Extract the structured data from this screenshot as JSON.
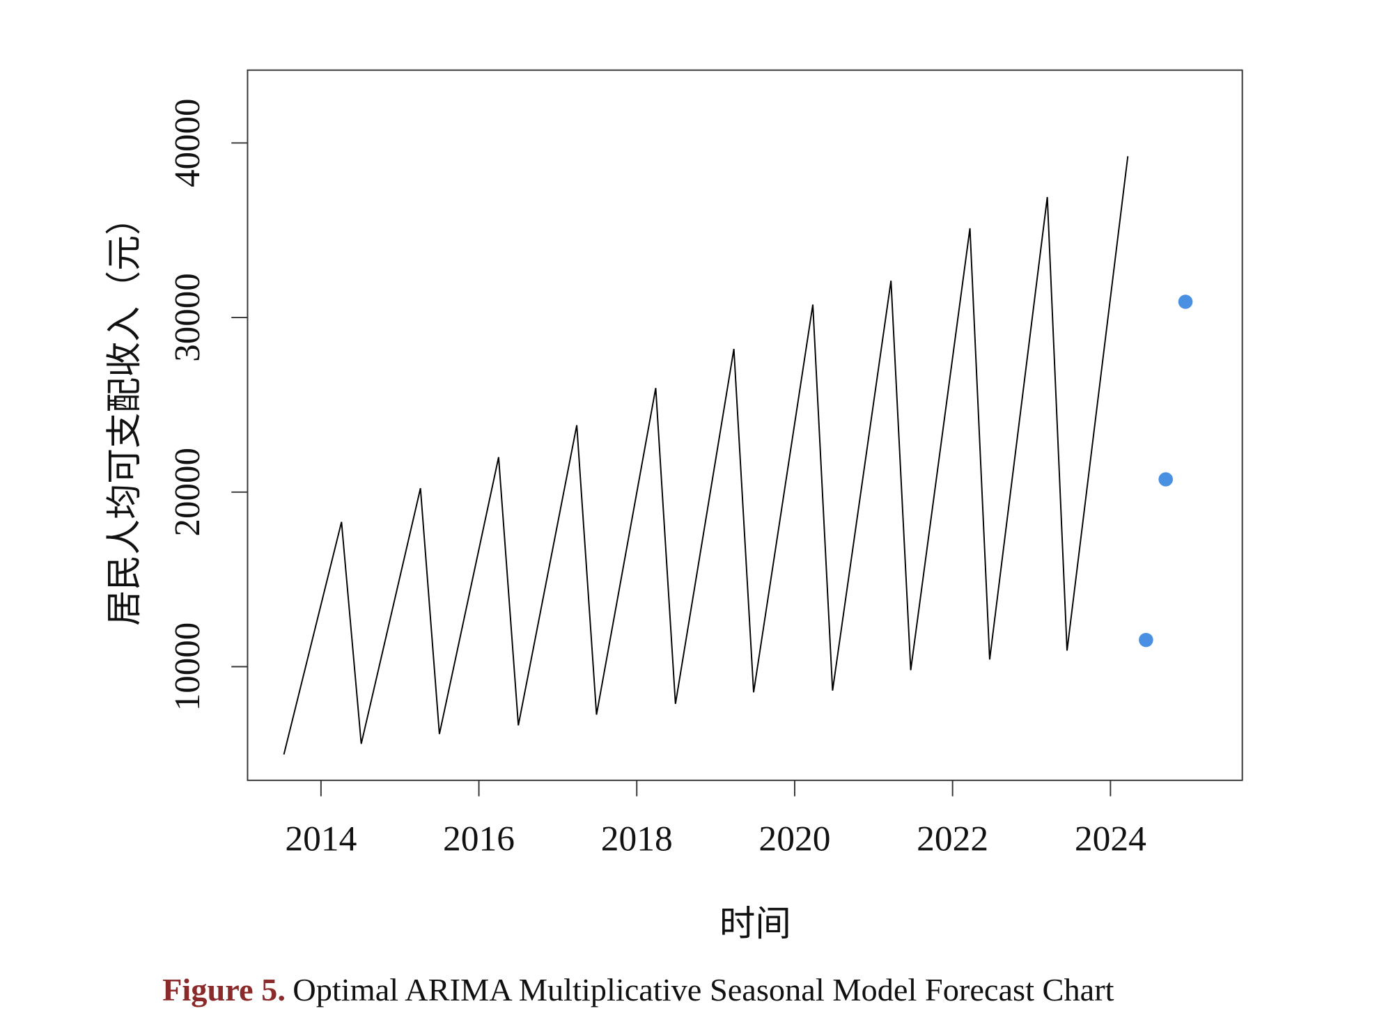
{
  "chart_data": {
    "type": "line",
    "x_label": "时间",
    "y_label": "居民人均可支配收入（元）",
    "caption_label": "Figure 5.",
    "caption": "Optimal ARIMA Multiplicative Seasonal Model Forecast Chart",
    "x": [
      2013.53,
      2014.26,
      2014.51,
      2015.26,
      2015.5,
      2016.25,
      2016.5,
      2017.24,
      2017.49,
      2018.24,
      2018.49,
      2019.23,
      2019.48,
      2020.23,
      2020.48,
      2021.22,
      2021.47,
      2022.22,
      2022.47,
      2023.2,
      2023.45,
      2024.22,
      2024.45,
      2024.7,
      2024.95
    ],
    "series": [
      {
        "color": "#000000",
        "values": [
          4970,
          18290,
          5580,
          20220,
          6140,
          22000,
          6640,
          23830,
          7250,
          25960,
          7870,
          28200,
          8530,
          30740,
          8630,
          32110,
          9800,
          35110,
          10410,
          36900,
          10920,
          39240,
          null,
          null,
          null
        ]
      },
      {
        "color": "#4a90e2",
        "values": [
          null,
          null,
          null,
          null,
          null,
          null,
          null,
          null,
          null,
          null,
          null,
          null,
          null,
          null,
          null,
          null,
          null,
          null,
          null,
          null,
          null,
          null,
          11530,
          20730,
          30900
        ]
      }
    ],
    "xlim": [
      2013.07,
      2025.67
    ],
    "ylim": [
      3490,
      44170
    ],
    "xticks": [
      2014,
      2016,
      2018,
      2020,
      2022,
      2024
    ],
    "yticks": [
      10000,
      20000,
      30000,
      40000
    ]
  }
}
